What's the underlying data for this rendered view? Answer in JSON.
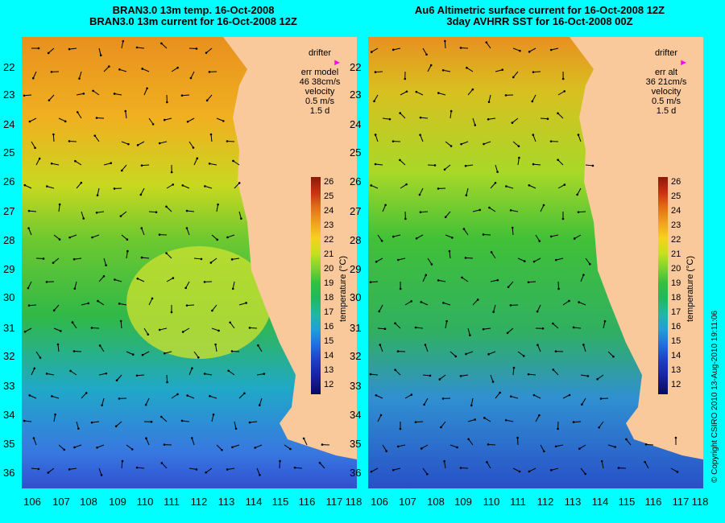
{
  "left_panel": {
    "title_line1": "BRAN3.0 13m temp. 16-Oct-2008",
    "title_line2": "BRAN3.0 13m current for 16-Oct-2008 12Z",
    "legend": {
      "drifter": "drifter",
      "err_label": "err model",
      "err_value": "46 38cm/s",
      "velocity": "velocity",
      "scale": "0.5 m/s",
      "days": "1.5 d"
    }
  },
  "right_panel": {
    "title_line1": "Au6 Altimetric surface current for 16-Oct-2008 12Z",
    "title_line2": "3day AVHRR SST for 16-Oct-2008 00Z",
    "legend": {
      "drifter": "drifter",
      "err_label": "err alt",
      "err_value": "36 21cm/s",
      "velocity": "velocity",
      "scale": "0.5 m/s",
      "days": "1.5 d"
    }
  },
  "latitude_labels": [
    "22",
    "23",
    "24",
    "25",
    "26",
    "27",
    "28",
    "29",
    "30",
    "31",
    "32",
    "33",
    "34",
    "35",
    "36"
  ],
  "longitude_labels": [
    "106",
    "107",
    "108",
    "109",
    "110",
    "111",
    "112",
    "113",
    "114",
    "115",
    "116",
    "117",
    "118"
  ],
  "colorbar": {
    "label": "temperature (°C)",
    "ticks": [
      "26",
      "25",
      "24",
      "23",
      "22",
      "21",
      "20",
      "19",
      "18",
      "17",
      "16",
      "15",
      "14",
      "13",
      "12"
    ]
  },
  "copyright": "© Copyright CSIRO 2010   13-Aug-2010 19:11:06",
  "colors": {
    "background": "#00ffff",
    "land": "#f9c89b",
    "drifter": "#ff00ff",
    "contour": "#6ee4e4"
  }
}
